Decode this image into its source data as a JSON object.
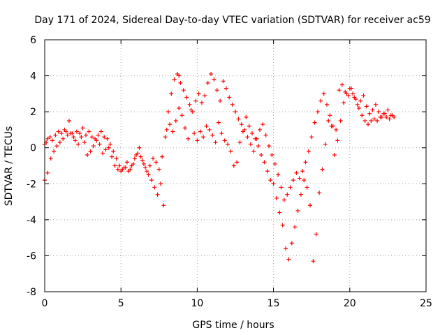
{
  "chart_data": {
    "type": "scatter",
    "title": "Day 171 of 2024, Sidereal Day-to-day VTEC variation (SDTVAR) for receiver ac59",
    "xlabel": "GPS time / hours",
    "ylabel": "SDTVAR / TECUs",
    "xlim": [
      0,
      25
    ],
    "ylim": [
      -8,
      6
    ],
    "x_ticks": [
      0,
      5,
      10,
      15,
      20,
      25
    ],
    "y_ticks": [
      -8,
      -6,
      -4,
      -2,
      0,
      2,
      4,
      6
    ],
    "x_tick_labels": [
      "0",
      "5",
      "10",
      "15",
      "20",
      "25"
    ],
    "y_tick_labels": [
      "-8",
      "-6",
      "-4",
      "-2",
      "0",
      "2",
      "4",
      "6"
    ],
    "grid": true,
    "marker": "plus",
    "color": "#ff0000",
    "series": [
      {
        "x": [
          0.0,
          0.1,
          0.2,
          0.35,
          0.5,
          0.7,
          0.9,
          1.1,
          1.3,
          1.5,
          1.7,
          1.9,
          2.1,
          2.3,
          2.5,
          2.7,
          2.9,
          3.1,
          3.3,
          3.5,
          3.7,
          3.9,
          4.1,
          4.3,
          4.5,
          4.7,
          4.9,
          5.1,
          5.3,
          5.5,
          5.7,
          5.9,
          6.1,
          6.3,
          6.5,
          6.7,
          6.9,
          7.1,
          7.3,
          7.5,
          7.7,
          7.9,
          8.1,
          8.3,
          8.5,
          8.7,
          8.8,
          8.9,
          9.1,
          9.3,
          9.5,
          9.7,
          9.9,
          10.1,
          10.3,
          10.5,
          10.7,
          10.9,
          11.1,
          11.3,
          11.5,
          11.7,
          11.9,
          12.1,
          12.3,
          12.5,
          12.7,
          12.9,
          13.1,
          13.3,
          13.5,
          13.7,
          13.9,
          14.1,
          14.3,
          14.5,
          14.7,
          14.9,
          15.1,
          15.3,
          15.5,
          15.7,
          15.9,
          16.1,
          16.3,
          16.5,
          16.7,
          16.9,
          17.1,
          17.3,
          17.5,
          17.7,
          17.9,
          18.1,
          18.3,
          18.5,
          18.7,
          18.9,
          19.1,
          19.3,
          19.5,
          19.7,
          19.9,
          20.1,
          20.3,
          20.5,
          20.7,
          20.9,
          21.1,
          21.3,
          21.5,
          21.7,
          21.9,
          22.1,
          22.3,
          22.5,
          22.7,
          22.9
        ],
        "y": [
          0.2,
          0.3,
          0.5,
          0.6,
          0.4,
          0.7,
          0.9,
          0.8,
          1.0,
          0.7,
          0.8,
          0.6,
          0.9,
          0.8,
          1.1,
          0.7,
          0.9,
          0.6,
          0.5,
          0.7,
          0.9,
          0.6,
          0.5,
          0.2,
          -0.2,
          -0.6,
          -1.0,
          -1.2,
          -1.1,
          -1.3,
          -1.0,
          -0.6,
          -0.3,
          -0.5,
          -0.9,
          -1.3,
          -1.0,
          -0.6,
          -0.8,
          -1.2,
          -0.5,
          0.6,
          2.0,
          3.0,
          3.8,
          4.1,
          4.0,
          3.6,
          3.2,
          2.8,
          2.4,
          2.0,
          2.6,
          3.0,
          2.5,
          2.9,
          3.6,
          4.1,
          3.8,
          3.2,
          2.6,
          3.7,
          3.3,
          2.8,
          2.4,
          2.0,
          1.6,
          1.3,
          1.0,
          0.6,
          0.2,
          -0.2,
          0.5,
          1.0,
          1.3,
          0.7,
          0.1,
          -0.4,
          -0.9,
          -1.5,
          -2.2,
          -2.9,
          -2.6,
          -2.2,
          -1.8,
          -1.4,
          -1.7,
          -1.3,
          -0.8,
          -0.2,
          0.6,
          1.4,
          2.0,
          2.6,
          3.0,
          2.4,
          1.8,
          1.2,
          1.0,
          3.2,
          3.5,
          3.1,
          2.9,
          3.3,
          2.8,
          2.4,
          2.6,
          2.9,
          2.3,
          1.9,
          2.1,
          2.4,
          2.0,
          1.7,
          1.9,
          2.1,
          1.8,
          1.7
        ]
      },
      {
        "x": [
          0.0,
          0.2,
          0.4,
          0.6,
          0.8,
          1.0,
          1.2,
          1.4,
          1.6,
          1.8,
          2.0,
          2.2,
          2.4,
          2.6,
          2.8,
          3.0,
          3.2,
          3.4,
          3.6,
          3.8,
          4.0,
          4.2,
          4.4,
          4.6,
          4.8,
          5.0,
          5.2,
          5.4,
          5.6,
          5.8,
          6.0,
          6.2,
          6.4,
          6.6,
          6.8,
          7.0,
          7.2,
          7.4,
          7.6,
          7.8,
          8.0,
          8.2,
          8.4,
          8.6,
          8.8,
          9.0,
          9.2,
          9.4,
          9.6,
          9.8,
          10.0,
          10.2,
          10.4,
          10.6,
          10.8,
          11.0,
          11.2,
          11.4,
          11.6,
          11.8,
          12.0,
          12.2,
          12.4,
          12.6,
          12.8,
          13.0,
          13.2,
          13.4,
          13.6,
          13.8,
          14.0,
          14.2,
          14.4,
          14.6,
          14.8,
          15.0,
          15.2,
          15.4,
          15.6,
          15.8,
          16.0,
          16.2,
          16.4,
          16.6,
          16.8,
          17.0,
          17.2,
          17.4,
          17.6,
          17.8,
          18.0,
          18.2,
          18.4,
          18.6,
          18.8,
          19.0,
          19.2,
          19.4,
          19.6,
          19.8,
          20.0,
          20.2,
          20.4,
          20.6,
          20.8,
          21.0,
          21.2,
          21.4,
          21.6,
          21.8,
          22.0,
          22.2,
          22.4,
          22.6,
          22.8
        ],
        "y": [
          -1.8,
          -1.4,
          -0.6,
          -0.2,
          0.1,
          0.3,
          0.5,
          0.9,
          1.5,
          0.8,
          0.4,
          0.2,
          0.6,
          0.3,
          -0.4,
          -0.2,
          0.1,
          0.4,
          0.2,
          -0.3,
          -0.1,
          0.0,
          -0.5,
          -1.0,
          -1.2,
          -1.3,
          -1.1,
          -0.8,
          -1.2,
          -0.9,
          -0.4,
          0.0,
          -0.7,
          -1.1,
          -1.5,
          -1.8,
          -2.2,
          -2.6,
          -2.0,
          -3.2,
          1.0,
          1.3,
          0.9,
          1.5,
          2.2,
          1.8,
          1.1,
          0.5,
          2.1,
          0.8,
          0.4,
          0.9,
          0.6,
          1.2,
          1.0,
          0.7,
          0.3,
          1.4,
          0.8,
          0.4,
          0.2,
          -0.2,
          -1.0,
          -0.8,
          0.3,
          0.9,
          1.7,
          1.2,
          0.8,
          0.5,
          0.1,
          -0.4,
          -0.8,
          -1.3,
          -1.8,
          -2.0,
          -2.8,
          -3.6,
          -4.3,
          -5.6,
          -6.2,
          -5.3,
          -4.4,
          -3.5,
          -2.6,
          -1.8,
          -2.2,
          -3.2,
          -6.3,
          -4.8,
          -2.5,
          -1.2,
          0.2,
          1.5,
          1.2,
          -0.4,
          0.4,
          1.5,
          2.5,
          3.0,
          3.3,
          3.0,
          2.7,
          2.2,
          1.8,
          1.5,
          1.3,
          1.5,
          1.6,
          1.5,
          1.7,
          1.9,
          1.7,
          1.6,
          1.8
        ]
      }
    ]
  }
}
